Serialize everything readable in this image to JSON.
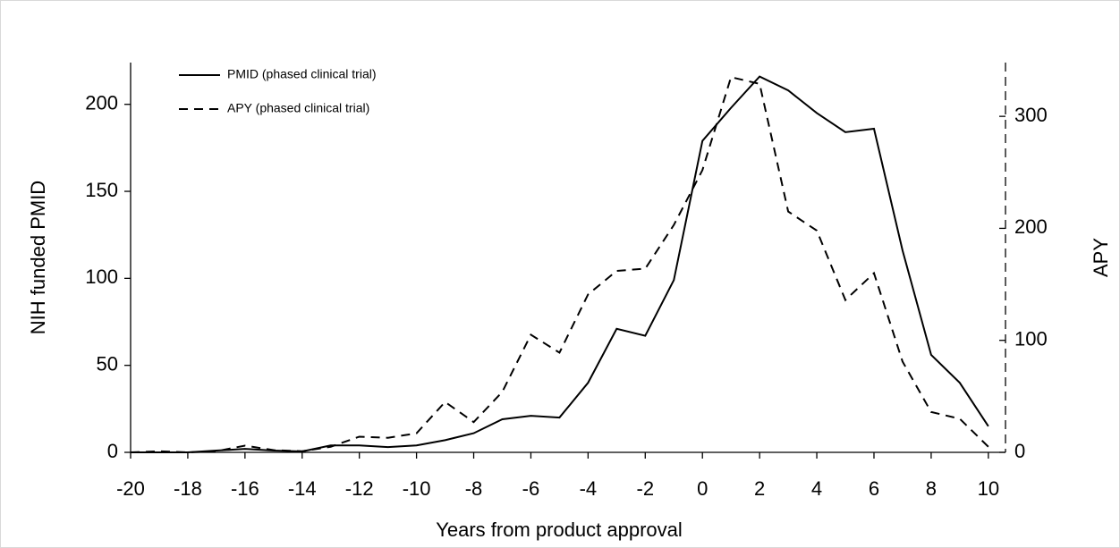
{
  "chart_data": {
    "type": "line",
    "x": [
      -20,
      -19,
      -18,
      -17,
      -16,
      -15,
      -14,
      -13,
      -12,
      -11,
      -10,
      -9,
      -8,
      -7,
      -6,
      -5,
      -4,
      -3,
      -2,
      -1,
      0,
      1,
      2,
      3,
      4,
      5,
      6,
      7,
      8,
      9,
      10
    ],
    "series": [
      {
        "name": "PMID (phased clinical trial)",
        "color": "#000000",
        "dash": "solid",
        "values": [
          0,
          0,
          0,
          1,
          2,
          1,
          0.5,
          4,
          4,
          3,
          4,
          7,
          11,
          19,
          21,
          20,
          40,
          71,
          67,
          99,
          179,
          198,
          216,
          208,
          195,
          184,
          186,
          116,
          56,
          40,
          15
        ]
      },
      {
        "name": "APY (phased clinical trial)",
        "color": "#000000",
        "dash": "dashed",
        "axis": "y2",
        "values": [
          0,
          1,
          0,
          1,
          6,
          2,
          1,
          5,
          14,
          13,
          17,
          45,
          27,
          54,
          105,
          89,
          141,
          162,
          164,
          203,
          252,
          335,
          329,
          215,
          198,
          136,
          160,
          81,
          36,
          30,
          5
        ]
      }
    ],
    "xlabel": "Years from product approval",
    "ylabel": "NIH funded PMID",
    "y2label": "APY",
    "xlim": [
      -20,
      10.6
    ],
    "xticks": [
      -20,
      -18,
      -16,
      -14,
      -12,
      -10,
      -8,
      -6,
      -4,
      -2,
      0,
      2,
      4,
      6,
      8,
      10
    ],
    "ylim": [
      0,
      224
    ],
    "yticks": [
      0,
      50,
      100,
      150,
      200
    ],
    "y2lim": [
      0,
      348
    ],
    "y2ticks": [
      0,
      100,
      200,
      300
    ],
    "legend": "top-left"
  }
}
